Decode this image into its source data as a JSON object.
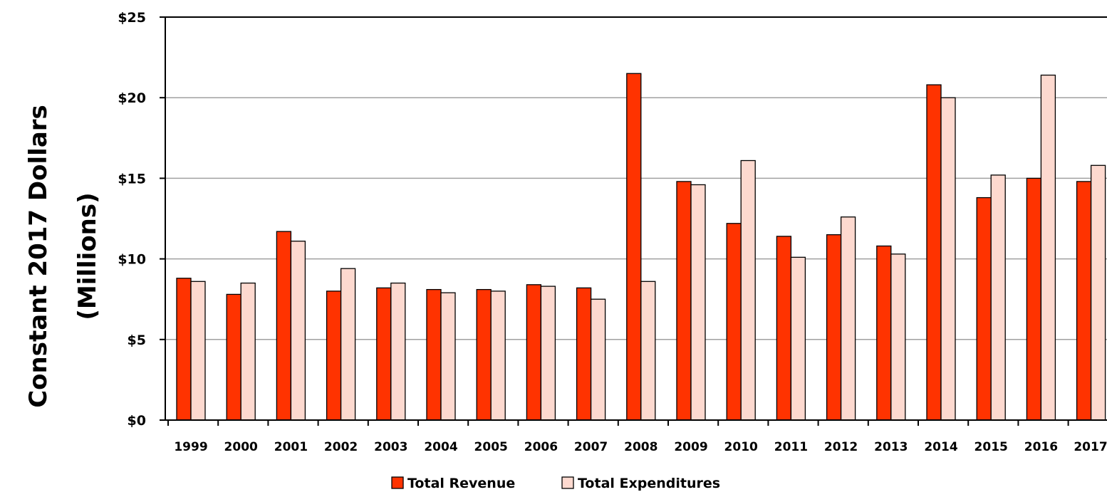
{
  "chart_data": {
    "type": "bar",
    "ylabel_line1": "Constant 2017 Dollars",
    "ylabel_line2": "(Millions)",
    "categories": [
      "1999",
      "2000",
      "2001",
      "2002",
      "2003",
      "2004",
      "2005",
      "2006",
      "2007",
      "2008",
      "2009",
      "2010",
      "2011",
      "2012",
      "2013",
      "2014",
      "2015",
      "2016",
      "2017"
    ],
    "series": [
      {
        "name": "Total Revenue",
        "color": "#ff3300",
        "values": [
          8.8,
          7.8,
          11.7,
          8.0,
          8.2,
          8.1,
          8.1,
          8.4,
          8.2,
          21.5,
          14.8,
          12.2,
          11.4,
          11.5,
          10.8,
          20.8,
          13.8,
          15.0,
          14.8
        ]
      },
      {
        "name": "Total Expenditures",
        "color": "#fdd9cf",
        "values": [
          8.6,
          8.5,
          11.1,
          9.4,
          8.5,
          7.9,
          8.0,
          8.3,
          7.5,
          8.6,
          14.6,
          16.1,
          10.1,
          12.6,
          10.3,
          20.0,
          15.2,
          21.4,
          15.8
        ]
      }
    ],
    "ylim": [
      0,
      25
    ],
    "yticks": [
      0,
      5,
      10,
      15,
      20,
      25
    ],
    "ytick_labels": [
      "$0",
      "$5",
      "$10",
      "$15",
      "$20",
      "$25"
    ],
    "grid": true,
    "legend_position": "bottom-center"
  }
}
